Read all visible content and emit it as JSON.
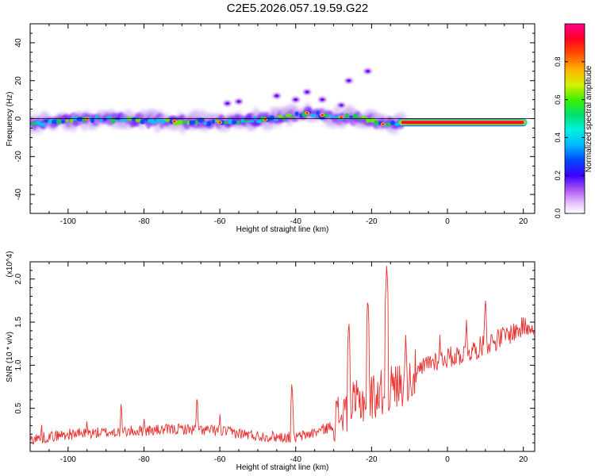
{
  "figure": {
    "title": "C2E5.2026.057.19.59.G22"
  },
  "colors": {
    "snr_line": "#e8302e",
    "ridge": "#e8141e",
    "axis": "#000000",
    "colormap": [
      "#ffffff",
      "#c9a7f0",
      "#9b3fe6",
      "#5a00ff",
      "#0000ff",
      "#00a8ff",
      "#00f0f0",
      "#10d040",
      "#60f000",
      "#d8f000",
      "#ffb000",
      "#ff5000",
      "#ff0000",
      "#ff0090"
    ]
  },
  "chart_data": [
    {
      "id": "spectrogram",
      "type": "heatmap",
      "xlabel": "Height of straight line (km)",
      "ylabel": "Frequency (Hz)",
      "xlim": [
        -110,
        23
      ],
      "ylim": [
        -50,
        50
      ],
      "x_ticks": [
        -100,
        -80,
        -60,
        -40,
        -20,
        0,
        20
      ],
      "y_ticks": [
        -40,
        -20,
        0,
        20,
        40
      ],
      "colorbar": {
        "label": "Normalized spectral amplitude",
        "range": [
          0,
          1
        ],
        "ticks": [
          "0.0",
          "0.2",
          "0.4",
          "0.6",
          "0.8"
        ],
        "tick_values": [
          0,
          0.2,
          0.4,
          0.6,
          0.8
        ]
      },
      "ridge": {
        "description": "dominant frequency band",
        "start_x": -110,
        "end_x": 21,
        "center_frequency_hz": [
          {
            "x": -110,
            "y": -3
          },
          {
            "x": -95,
            "y": 0
          },
          {
            "x": -80,
            "y": -1
          },
          {
            "x": -60,
            "y": -2
          },
          {
            "x": -45,
            "y": 0
          },
          {
            "x": -37,
            "y": 3
          },
          {
            "x": -30,
            "y": 1
          },
          {
            "x": -22,
            "y": 0
          },
          {
            "x": -17,
            "y": -3
          },
          {
            "x": -12,
            "y": -2
          },
          {
            "x": 0,
            "y": -2
          },
          {
            "x": 21,
            "y": -2
          }
        ],
        "saturated_from_x": -12
      },
      "scattered_features": [
        {
          "x": -21,
          "y": 25
        },
        {
          "x": -26,
          "y": 20
        },
        {
          "x": -37,
          "y": 14
        },
        {
          "x": -58,
          "y": 8
        },
        {
          "x": -55,
          "y": 9
        },
        {
          "x": -45,
          "y": 12
        },
        {
          "x": -40,
          "y": 10
        },
        {
          "x": -33,
          "y": 10
        },
        {
          "x": -28,
          "y": 7
        }
      ]
    },
    {
      "id": "snr",
      "type": "line",
      "xlabel": "Height of straight line (km)",
      "ylabel": "SNR (10 * v/v)",
      "scale_label": "(x10^4)",
      "xlim": [
        -110,
        23
      ],
      "ylim": [
        0,
        2.2
      ],
      "x_ticks": [
        -100,
        -80,
        -60,
        -40,
        -20,
        0,
        20
      ],
      "y_ticks": [
        0.5,
        1.0,
        1.5,
        2.0
      ],
      "y_tick_labels": [
        "0.5",
        "1.0",
        "1.5",
        "2.0"
      ],
      "series": [
        {
          "name": "SNR",
          "envelope": [
            {
              "x": -110,
              "y": 0.12
            },
            {
              "x": -100,
              "y": 0.18
            },
            {
              "x": -90,
              "y": 0.2
            },
            {
              "x": -80,
              "y": 0.22
            },
            {
              "x": -70,
              "y": 0.24
            },
            {
              "x": -60,
              "y": 0.22
            },
            {
              "x": -50,
              "y": 0.16
            },
            {
              "x": -40,
              "y": 0.14
            },
            {
              "x": -35,
              "y": 0.2
            },
            {
              "x": -30,
              "y": 0.28
            },
            {
              "x": -25,
              "y": 0.45
            },
            {
              "x": -20,
              "y": 0.55
            },
            {
              "x": -15,
              "y": 0.65
            },
            {
              "x": -10,
              "y": 0.75
            },
            {
              "x": -5,
              "y": 1.0
            },
            {
              "x": 0,
              "y": 1.05
            },
            {
              "x": 5,
              "y": 1.1
            },
            {
              "x": 10,
              "y": 1.2
            },
            {
              "x": 15,
              "y": 1.3
            },
            {
              "x": 20,
              "y": 1.4
            },
            {
              "x": 23,
              "y": 1.45
            }
          ],
          "spikes": [
            {
              "x": -107,
              "y": 0.38
            },
            {
              "x": -95,
              "y": 0.42
            },
            {
              "x": -86,
              "y": 0.62
            },
            {
              "x": -80,
              "y": 0.45
            },
            {
              "x": -66,
              "y": 0.7
            },
            {
              "x": -60,
              "y": 0.48
            },
            {
              "x": -41,
              "y": 0.85
            },
            {
              "x": -26,
              "y": 1.55
            },
            {
              "x": -21,
              "y": 1.82
            },
            {
              "x": -16,
              "y": 2.2
            },
            {
              "x": -11,
              "y": 1.35
            },
            {
              "x": -2,
              "y": 1.35
            },
            {
              "x": 5,
              "y": 1.55
            },
            {
              "x": 10,
              "y": 1.82
            },
            {
              "x": 20,
              "y": 1.6
            }
          ]
        }
      ]
    }
  ]
}
